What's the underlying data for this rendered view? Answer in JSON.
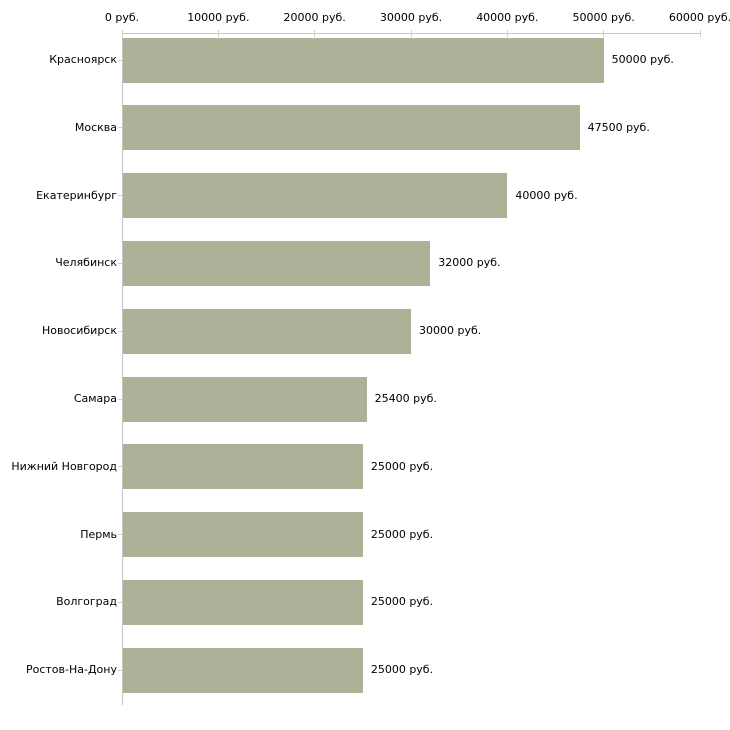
{
  "chart_data": {
    "type": "bar",
    "orientation": "horizontal",
    "title": "",
    "xlabel": "",
    "ylabel": "",
    "categories": [
      "Красноярск",
      "Москва",
      "Екатеринбург",
      "Челябинск",
      "Новосибирск",
      "Самара",
      "Нижний Новгород",
      "Пермь",
      "Волгоград",
      "Ростов-На-Дону"
    ],
    "values": [
      50000,
      47500,
      40000,
      32000,
      30000,
      25400,
      25000,
      25000,
      25000,
      25000
    ],
    "value_labels": [
      "50000 руб.",
      "47500 руб.",
      "40000 руб.",
      "32000 руб.",
      "30000 руб.",
      "25400 руб.",
      "25000 руб.",
      "25000 руб.",
      "25000 руб.",
      "25000 руб."
    ],
    "x_axis": {
      "min": 0,
      "max": 60000,
      "tick_values": [
        0,
        10000,
        20000,
        30000,
        40000,
        50000,
        60000
      ],
      "tick_labels": [
        "0 руб.",
        "10000 руб.",
        "20000 руб.",
        "30000 руб.",
        "40000 руб.",
        "50000 руб.",
        "60000 руб."
      ],
      "position": "top"
    },
    "grid": false,
    "legend": false,
    "colors": {
      "bar_fill": "#acb298",
      "axis_line": "#c6c6c6",
      "tick_mark": "#d6d6ae",
      "text": "#000000",
      "background": "#ffffff"
    }
  }
}
